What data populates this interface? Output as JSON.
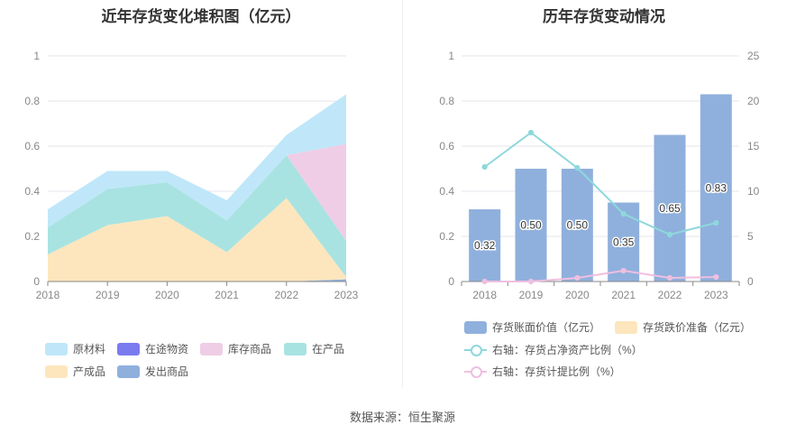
{
  "source": "数据来源：恒生聚源",
  "chart_data": [
    {
      "type": "area",
      "stacked": true,
      "title": "近年存货变化堆积图（亿元）",
      "categories": [
        "2018",
        "2019",
        "2020",
        "2021",
        "2022",
        "2023"
      ],
      "ylim": [
        0,
        1
      ],
      "yticks": [
        "0",
        "0.2",
        "0.4",
        "0.6",
        "0.8",
        "1"
      ],
      "grid": true,
      "legend_position": "bottom",
      "series": [
        {
          "name": "原材料",
          "color": "#bfe7f9",
          "values": [
            0.08,
            0.08,
            0.05,
            0.09,
            0.09,
            0.22
          ]
        },
        {
          "name": "在途物资",
          "color": "#7b7bf0",
          "values": [
            0,
            0,
            0,
            0,
            0,
            0
          ]
        },
        {
          "name": "库存商品",
          "color": "#efcde6",
          "values": [
            0,
            0,
            0,
            0,
            0,
            0.43
          ]
        },
        {
          "name": "在产品",
          "color": "#a8e3e1",
          "values": [
            0.12,
            0.16,
            0.15,
            0.14,
            0.19,
            0.16
          ]
        },
        {
          "name": "产成品",
          "color": "#fde6bd",
          "values": [
            0.12,
            0.25,
            0.29,
            0.13,
            0.37,
            0.01
          ]
        },
        {
          "name": "发出商品",
          "color": "#8fb0dd",
          "values": [
            0,
            0,
            0,
            0,
            0,
            0.01
          ]
        }
      ]
    },
    {
      "type": "bar",
      "title": "历年存货变动情况",
      "categories": [
        "2018",
        "2019",
        "2020",
        "2021",
        "2022",
        "2023"
      ],
      "ylim": [
        0,
        1
      ],
      "yticks": [
        "0",
        "0.2",
        "0.4",
        "0.6",
        "0.8",
        "1"
      ],
      "y2lim": [
        0,
        25
      ],
      "y2ticks": [
        "0",
        "5",
        "10",
        "15",
        "20",
        "25"
      ],
      "grid": true,
      "legend_position": "bottom",
      "series": [
        {
          "name": "存货账面价值（亿元）",
          "kind": "bar",
          "color": "#8fb0dd",
          "values": [
            0.32,
            0.5,
            0.5,
            0.35,
            0.65,
            0.83
          ],
          "labels": [
            "0.32",
            "0.50",
            "0.50",
            "0.35",
            "0.65",
            "0.83"
          ]
        },
        {
          "name": "存货跌价准备（亿元）",
          "kind": "bar",
          "color": "#fde6bd",
          "values": [
            0,
            0,
            0,
            0,
            0,
            0
          ]
        },
        {
          "name": "右轴：存货占净资产比例（%）",
          "kind": "line",
          "axis": "right",
          "color": "#8ed8dc",
          "values": [
            12.7,
            16.5,
            12.6,
            7.5,
            5.2,
            6.5
          ]
        },
        {
          "name": "右轴：存货计提比例（%）",
          "kind": "line",
          "axis": "right",
          "color": "#efbfe0",
          "values": [
            0,
            0,
            0.4,
            1.2,
            0.4,
            0.5
          ]
        }
      ]
    }
  ]
}
